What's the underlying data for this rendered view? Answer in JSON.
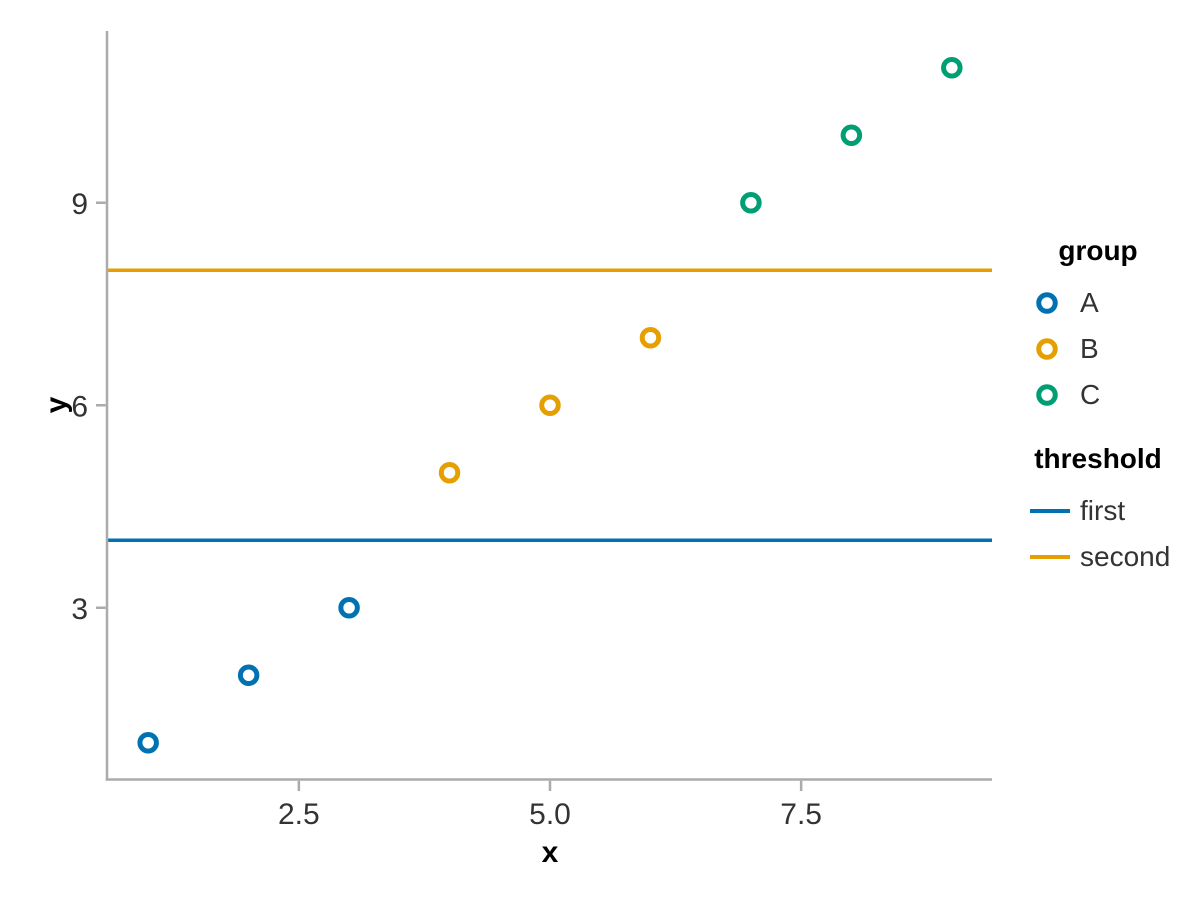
{
  "chart_data": {
    "type": "scatter",
    "title": "",
    "xlabel": "x",
    "ylabel": "y",
    "xlim": [
      0.6,
      9.4
    ],
    "ylim": [
      0.5,
      11.5
    ],
    "grid": false,
    "legend_position": "right",
    "x_ticks": {
      "values": [
        2.5,
        5.0,
        7.5
      ],
      "labels": [
        "2.5",
        "5.0",
        "7.5"
      ]
    },
    "y_ticks": {
      "values": [
        3,
        6,
        9
      ],
      "labels": [
        "3",
        "6",
        "9"
      ]
    },
    "series": [
      {
        "name": "A",
        "color": "#0072B2",
        "points": [
          [
            1,
            1
          ],
          [
            2,
            2
          ],
          [
            3,
            3
          ]
        ]
      },
      {
        "name": "B",
        "color": "#E69F00",
        "points": [
          [
            4,
            5
          ],
          [
            5,
            6
          ],
          [
            6,
            7
          ]
        ]
      },
      {
        "name": "C",
        "color": "#009E73",
        "points": [
          [
            7,
            9
          ],
          [
            8,
            10
          ],
          [
            9,
            11
          ]
        ]
      }
    ],
    "rules": [
      {
        "name": "first",
        "y": 4,
        "color": "#0072B2"
      },
      {
        "name": "second",
        "y": 8,
        "color": "#E69F00"
      }
    ],
    "legend": {
      "group_title": "group",
      "threshold_title": "threshold"
    },
    "colors": {
      "axis": "#ABABAB",
      "tick_label": "#333333",
      "title": "#000000",
      "point_fill": "#FFFFFF"
    }
  }
}
